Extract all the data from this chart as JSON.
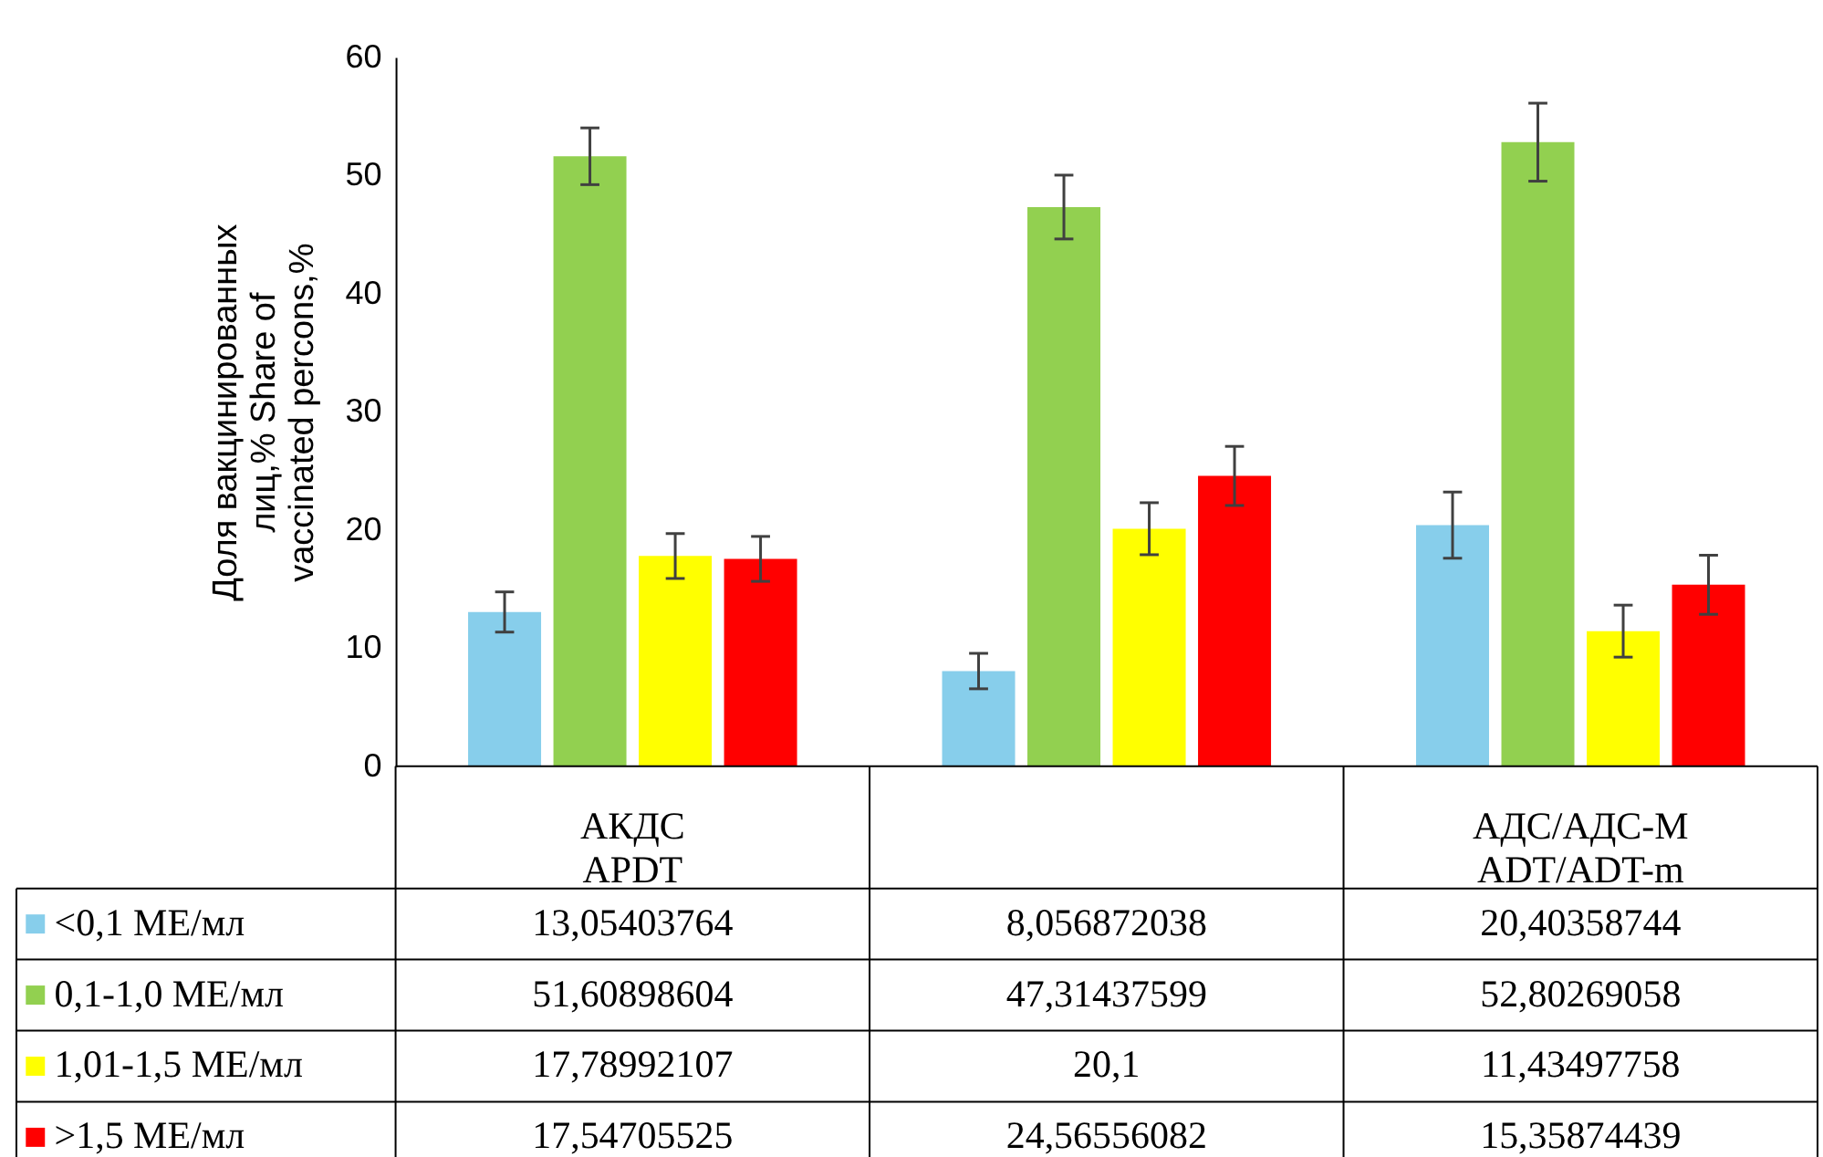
{
  "chart_data": {
    "type": "bar",
    "ylabel": "Доля вакцинированных\nлиц,% Share of\nvaccinated percons,%",
    "categories": [
      "АКДС\nAPDT",
      null,
      "АДС/АДС-М\nADT/ADT-m"
    ],
    "ylim": [
      0,
      60
    ],
    "yticks": [
      0,
      10,
      20,
      30,
      40,
      50,
      60
    ],
    "grid": false,
    "legend": "bottom",
    "series": [
      {
        "name": "<0,1 МЕ/мл",
        "color": "#87ceeb",
        "values": [
          13.05403764,
          8.056872038,
          20.40358744
        ],
        "errors": [
          1.7,
          1.5,
          2.8
        ],
        "value_labels": [
          "13,05403764",
          "8,056872038",
          "20,40358744"
        ]
      },
      {
        "name": "0,1-1,0 МЕ/мл",
        "color": "#92d050",
        "values": [
          51.60898604,
          47.31437599,
          52.80269058
        ],
        "errors": [
          2.4,
          2.7,
          3.3
        ],
        "value_labels": [
          "51,60898604",
          "47,31437599",
          "52,80269058"
        ]
      },
      {
        "name": "1,01-1,5 МЕ/мл",
        "color": "#ffff00",
        "values": [
          17.78992107,
          20.1,
          11.43497758
        ],
        "errors": [
          1.9,
          2.2,
          2.2
        ],
        "value_labels": [
          "17,78992107",
          "20,1",
          "11,43497758"
        ]
      },
      {
        "name": ">1,5 МЕ/мл",
        "color": "#ff0000",
        "values": [
          17.54705525,
          24.56556082,
          15.35874439
        ],
        "errors": [
          1.9,
          2.5,
          2.5
        ],
        "value_labels": [
          "17,54705525",
          "24,56556082",
          "15,35874439"
        ]
      }
    ]
  }
}
